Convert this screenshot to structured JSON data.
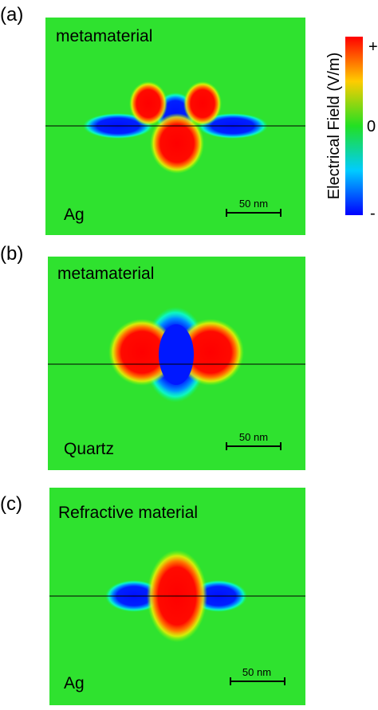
{
  "panels": [
    {
      "label": "(a)",
      "top_text": "metamaterial",
      "bottom_text": "Ag",
      "scale_bar": "50 nm"
    },
    {
      "label": "(b)",
      "top_text": "metamaterial",
      "bottom_text": "Quartz",
      "scale_bar": "50 nm"
    },
    {
      "label": "(c)",
      "top_text": "Refractive material",
      "bottom_text": "Ag",
      "scale_bar": "50 nm"
    }
  ],
  "colorbar": {
    "title": "Electrical Field (V/m)",
    "max_label": "+",
    "mid_label": "0",
    "min_label": "-"
  }
}
